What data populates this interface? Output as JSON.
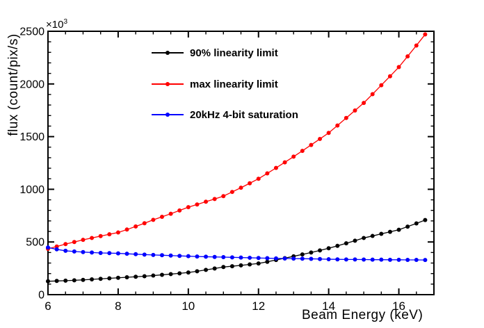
{
  "colors": {
    "background": "#ffffff",
    "frame": "#000000",
    "black_series": "#000000",
    "red_series": "#ff0000",
    "blue_series": "#0000ff"
  },
  "chart_data": {
    "type": "line",
    "title": "",
    "xlabel": "Beam Energy (keV)",
    "ylabel": "flux (count/pix/s)",
    "y_exponent_label": "×10",
    "y_exponent_power": "3",
    "y_unit_scale": "values are in units of 10^3 count/pix/s",
    "xlim": [
      6,
      17
    ],
    "ylim": [
      0,
      2500
    ],
    "x_major_ticks": [
      6,
      8,
      10,
      12,
      14,
      16
    ],
    "x_tick_labels": [
      "6",
      "8",
      "10",
      "12",
      "14",
      "16"
    ],
    "x_minor_step": 0.5,
    "y_major_ticks": [
      0,
      500,
      1000,
      1500,
      2000,
      2500
    ],
    "y_tick_labels": [
      "0",
      "500",
      "1000",
      "1500",
      "2000",
      "2500"
    ],
    "y_minor_step": 100,
    "grid": false,
    "legend_position": "top-center-inside",
    "x": [
      6.0,
      6.25,
      6.5,
      6.75,
      7.0,
      7.25,
      7.5,
      7.75,
      8.0,
      8.25,
      8.5,
      8.75,
      9.0,
      9.25,
      9.5,
      9.75,
      10.0,
      10.25,
      10.5,
      10.75,
      11.0,
      11.25,
      11.5,
      11.75,
      12.0,
      12.25,
      12.5,
      12.75,
      13.0,
      13.25,
      13.5,
      13.75,
      14.0,
      14.25,
      14.5,
      14.75,
      15.0,
      15.25,
      15.5,
      15.75,
      16.0,
      16.25,
      16.5,
      16.75
    ],
    "series": [
      {
        "name": "90% linearity limit",
        "color": "#000000",
        "marker": "filled-circle",
        "values": [
          127,
          130,
          133,
          136,
          140,
          145,
          150,
          155,
          160,
          165,
          170,
          175,
          181,
          188,
          195,
          202,
          210,
          222,
          235,
          248,
          262,
          270,
          278,
          287,
          296,
          312,
          329,
          346,
          364,
          382,
          400,
          420,
          440,
          463,
          487,
          512,
          538,
          557,
          577,
          596,
          616,
          646,
          676,
          708
        ]
      },
      {
        "name": "max linearity limit",
        "color": "#ff0000",
        "marker": "filled-circle",
        "values": [
          435,
          457,
          480,
          500,
          520,
          538,
          556,
          573,
          590,
          618,
          647,
          678,
          710,
          739,
          768,
          799,
          830,
          856,
          882,
          908,
          935,
          975,
          1015,
          1057,
          1100,
          1151,
          1203,
          1256,
          1310,
          1365,
          1421,
          1478,
          1535,
          1605,
          1677,
          1748,
          1820,
          1903,
          1988,
          2073,
          2160,
          2262,
          2365,
          2470
        ]
      },
      {
        "name": "20kHz 4-bit saturation",
        "color": "#0000ff",
        "marker": "filled-circle",
        "values": [
          448,
          430,
          416,
          410,
          404,
          400,
          396,
          394,
          392,
          388,
          384,
          380,
          377,
          374,
          371,
          368,
          365,
          362,
          360,
          358,
          356,
          354,
          352,
          350,
          348,
          346,
          344,
          343,
          342,
          341,
          340,
          338,
          336,
          335,
          334,
          334,
          333,
          332,
          332,
          331,
          331,
          330,
          330,
          329
        ]
      }
    ]
  },
  "legend": {
    "entries": [
      {
        "label": "90% linearity limit",
        "color": "#000000"
      },
      {
        "label": "max linearity limit",
        "color": "#ff0000"
      },
      {
        "label": "20kHz 4-bit saturation",
        "color": "#0000ff"
      }
    ]
  }
}
